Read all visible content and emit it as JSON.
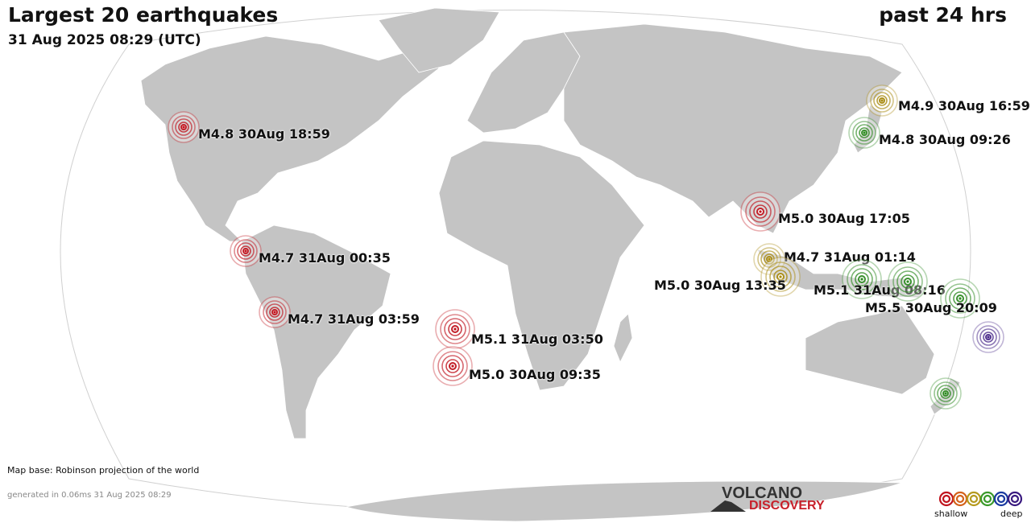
{
  "title": "Largest 20 earthquakes",
  "subtitle": "31 Aug 2025 08:29 (UTC)",
  "period": "past 24 hrs",
  "map_base_note": "Map base: Robinson projection of the world",
  "generated_note": "generated in 0.06ms 31 Aug 2025 08:29",
  "logo": {
    "top": "VOLCANO",
    "bottom": "DISCOVERY"
  },
  "legend": {
    "shallow_label": "shallow",
    "deep_label": "deep",
    "depth_colors": [
      "#c0141e",
      "#d4621a",
      "#b59a1e",
      "#3a9a2a",
      "#1a3aa0",
      "#3a1a80"
    ]
  },
  "colors": {
    "land": "#c4c4c4",
    "ocean": "#ffffff",
    "red": "#c0141e",
    "olive": "#a88a10",
    "green": "#2e8a22",
    "purple": "#4a2a8a"
  },
  "earthquakes": [
    {
      "label": "M4.8 30Aug 18:59",
      "color": "red",
      "size": "medium"
    },
    {
      "label": "M4.9 30Aug 16:59",
      "color": "olive",
      "size": "medium"
    },
    {
      "label": "M4.8 30Aug 09:26",
      "color": "green",
      "size": "medium"
    },
    {
      "label": "M5.0 30Aug 17:05",
      "color": "red",
      "size": "large"
    },
    {
      "label": "M4.7 31Aug 00:35",
      "color": "red",
      "size": "medium"
    },
    {
      "label": "M4.7 31Aug 01:14",
      "color": "olive",
      "size": "medium"
    },
    {
      "label": "M5.0 30Aug 13:35",
      "color": "olive",
      "size": "large"
    },
    {
      "label": "M5.1 31Aug 08:16",
      "color": "green",
      "size": "large"
    },
    {
      "label": "",
      "color": "green",
      "size": "large"
    },
    {
      "label": "M5.5 30Aug 20:09",
      "color": "green",
      "size": "large"
    },
    {
      "label": "M4.7 31Aug 03:59",
      "color": "red",
      "size": "medium"
    },
    {
      "label": "M5.1 31Aug 03:50",
      "color": "red",
      "size": "large"
    },
    {
      "label": "M5.0 30Aug 09:35",
      "color": "red",
      "size": "large"
    },
    {
      "label": "",
      "color": "purple",
      "size": "medium"
    },
    {
      "label": "",
      "color": "green",
      "size": "medium"
    }
  ]
}
